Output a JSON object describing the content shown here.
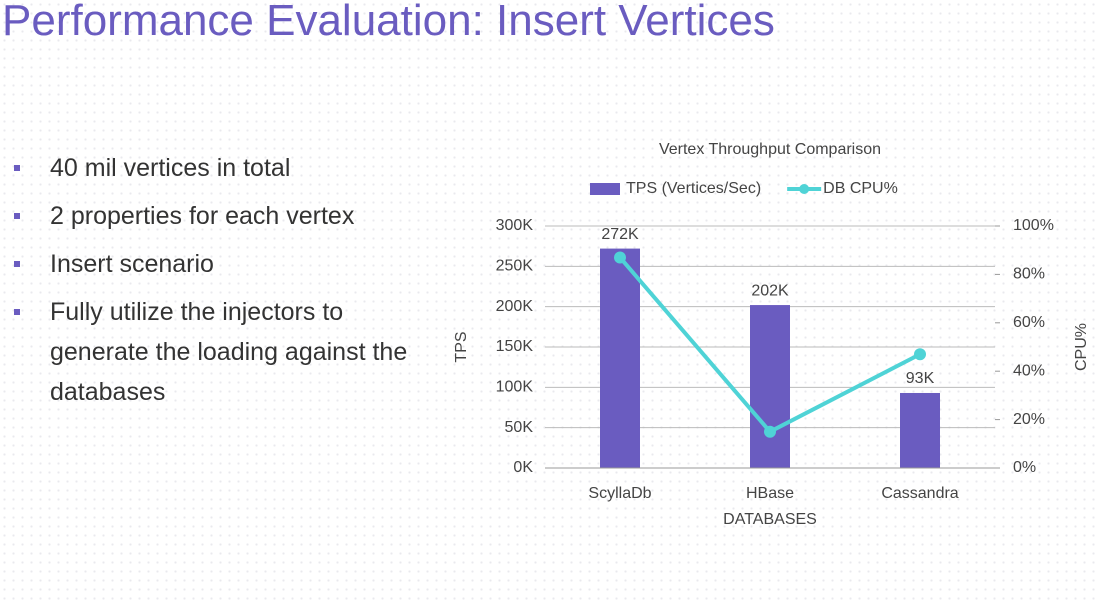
{
  "slide": {
    "title": "Performance Evaluation: Insert Vertices",
    "bullets": [
      "40 mil vertices in total",
      "2 properties for each vertex",
      "Insert scenario",
      "Fully utilize the injectors to generate the loading against the databases"
    ]
  },
  "chart_data": {
    "type": "bar",
    "title": "Vertex Throughput Comparison",
    "x_label": "DATABASES",
    "y_label": "TPS",
    "y2_label": "CPU%",
    "categories": [
      "ScyllaDb",
      "HBase",
      "Cassandra"
    ],
    "series": [
      {
        "name": "TPS (Vertices/Sec)",
        "type": "bar",
        "color": "#6a5cc0",
        "values": [
          272000,
          202000,
          93000
        ],
        "value_labels": [
          "272K",
          "202K",
          "93K"
        ]
      },
      {
        "name": "DB CPU%",
        "type": "line",
        "axis": "y2",
        "color": "#4fd3d6",
        "values": [
          87,
          15,
          47
        ]
      }
    ],
    "ylim": [
      0,
      300000
    ],
    "yticks": [
      {
        "value": 0,
        "label": "0K"
      },
      {
        "value": 50000,
        "label": "50K"
      },
      {
        "value": 100000,
        "label": "100K"
      },
      {
        "value": 150000,
        "label": "150K"
      },
      {
        "value": 200000,
        "label": "200K"
      },
      {
        "value": 250000,
        "label": "250K"
      },
      {
        "value": 300000,
        "label": "300K"
      }
    ],
    "y2lim": [
      0,
      100
    ],
    "y2ticks": [
      {
        "value": 0,
        "label": "0%"
      },
      {
        "value": 20,
        "label": "20%"
      },
      {
        "value": 40,
        "label": "40%"
      },
      {
        "value": 60,
        "label": "60%"
      },
      {
        "value": 80,
        "label": "80%"
      },
      {
        "value": 100,
        "label": "100%"
      }
    ],
    "grid": true,
    "legend": "top"
  }
}
